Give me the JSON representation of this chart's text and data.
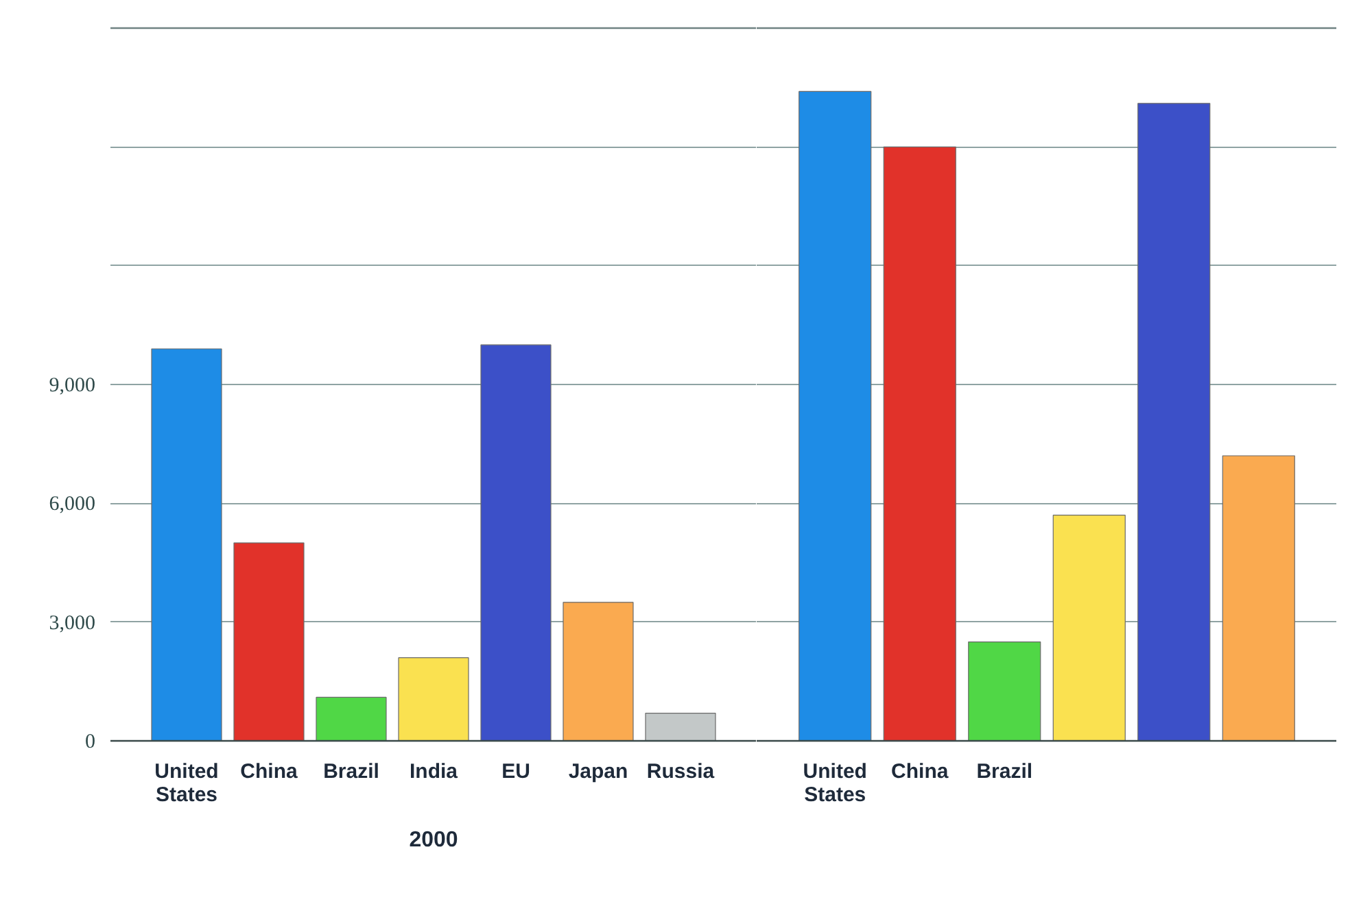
{
  "chart_data": [
    {
      "type": "bar",
      "categories": [
        "United States",
        "China",
        "Brazil",
        "India",
        "EU",
        "Japan",
        "Russia"
      ],
      "values": [
        9900,
        5000,
        1100,
        2100,
        10000,
        3500,
        700
      ],
      "colors": [
        "#1e8ce6",
        "#e1322a",
        "#50d746",
        "#fae150",
        "#3c50c8",
        "#faaa50",
        "#c3c8c8"
      ],
      "xlabel": "2000",
      "ylim": [
        0,
        18000
      ],
      "yticks": [
        0,
        {
          "value": 3000,
          "label": "3,000"
        },
        {
          "value": 6000,
          "label": "6,000"
        },
        {
          "value": 9000,
          "label": "9,000"
        },
        {
          "value": 12000,
          "label": null
        },
        {
          "value": 15000,
          "label": null
        },
        {
          "value": 18000,
          "label": null
        }
      ],
      "grid": "y"
    },
    {
      "type": "bar",
      "categories": [
        "United States",
        "China",
        "Brazil",
        null,
        null,
        null
      ],
      "values": [
        16400,
        15000,
        2500,
        5700,
        16100,
        7200
      ],
      "colors": [
        "#1e8ce6",
        "#e1322a",
        "#50d746",
        "#fae150",
        "#3c50c8",
        "#faaa50"
      ],
      "ylim": [
        0,
        18000
      ],
      "yticks": [
        0,
        3000,
        6000,
        9000,
        12000,
        15000,
        18000
      ],
      "grid": "y",
      "tick_labels": "x"
    }
  ]
}
